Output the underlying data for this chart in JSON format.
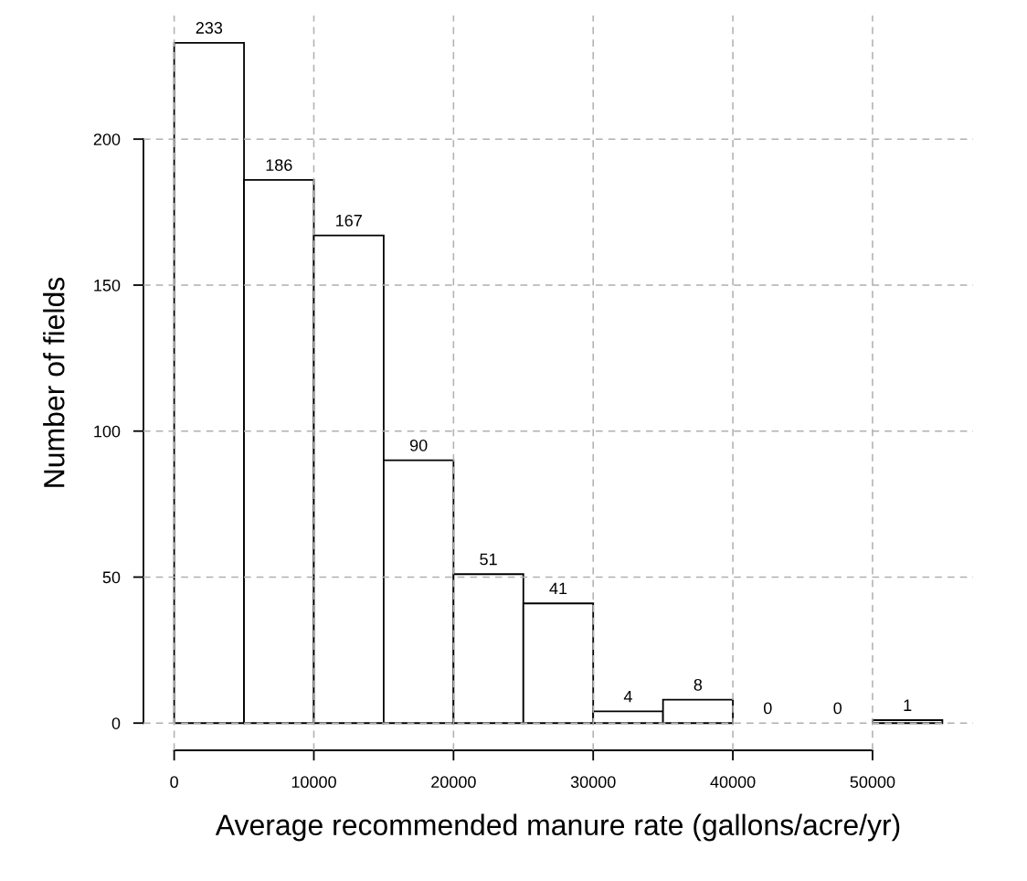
{
  "chart_data": {
    "type": "histogram",
    "xlabel": "Average recommended manure rate (gallons/acre/yr)",
    "ylabel": "Number of fields",
    "bins": [
      0,
      5000,
      10000,
      15000,
      20000,
      25000,
      30000,
      35000,
      40000,
      45000,
      50000,
      55000
    ],
    "values": [
      233,
      186,
      167,
      90,
      51,
      41,
      4,
      8,
      0,
      0,
      1
    ],
    "color": "#ffffff",
    "xlim": [
      -2200,
      57200
    ],
    "ylim": [
      -9.32,
      242.32
    ],
    "xticks": [
      0,
      10000,
      20000,
      30000,
      40000,
      50000
    ],
    "yticks": [
      0,
      50,
      100,
      150,
      200
    ],
    "grid": true,
    "data_labels": true
  }
}
